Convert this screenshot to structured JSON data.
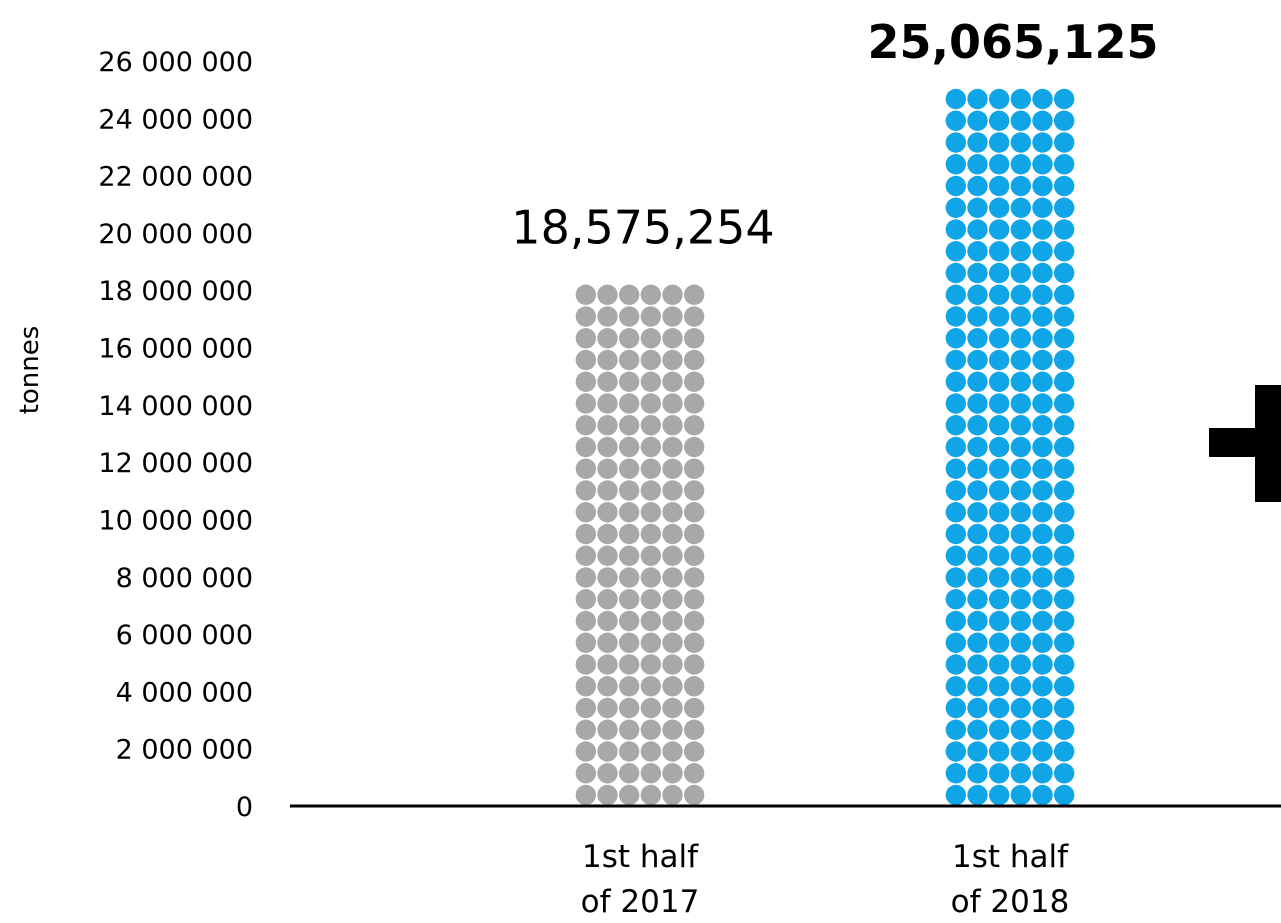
{
  "chart_data": {
    "type": "bar",
    "ylabel": "tonnes",
    "ylim": [
      0,
      26000000
    ],
    "yticks": [
      {
        "value": 0,
        "label": "0"
      },
      {
        "value": 2000000,
        "label": "2 000 000"
      },
      {
        "value": 4000000,
        "label": "4 000 000"
      },
      {
        "value": 6000000,
        "label": "6 000 000"
      },
      {
        "value": 8000000,
        "label": "8 000 000"
      },
      {
        "value": 10000000,
        "label": "10 000 000"
      },
      {
        "value": 12000000,
        "label": "12 000 000"
      },
      {
        "value": 14000000,
        "label": "14 000 000"
      },
      {
        "value": 16000000,
        "label": "16 000 000"
      },
      {
        "value": 18000000,
        "label": "18 000 000"
      },
      {
        "value": 20000000,
        "label": "20 000 000"
      },
      {
        "value": 22000000,
        "label": "22 000 000"
      },
      {
        "value": 24000000,
        "label": "24 000 000"
      },
      {
        "value": 26000000,
        "label": "26 000 000"
      }
    ],
    "categories": [
      {
        "line1": "1st half",
        "line2": "of 2017"
      },
      {
        "line1": "1st half",
        "line2": "of 2018"
      }
    ],
    "values": [
      18575254,
      25065125
    ],
    "data_labels": [
      "18,575,254",
      "25,065,125"
    ],
    "bar_colors": [
      "#a8a8a8",
      "#0fa5e6"
    ],
    "bold_label": [
      false,
      true
    ],
    "grid": false,
    "bar_style": "dot-matrix"
  },
  "decoration": {
    "icon": "plus-icon",
    "color": "#000000"
  }
}
